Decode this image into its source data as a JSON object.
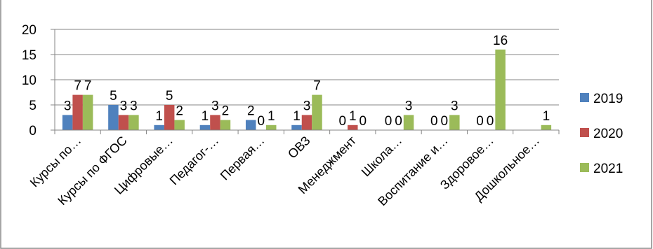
{
  "chart_data": {
    "type": "bar",
    "title": "",
    "xlabel": "",
    "ylabel": "",
    "ylim": [
      0,
      20
    ],
    "yticks": [
      0,
      5,
      10,
      15,
      20
    ],
    "grid": "horizontal",
    "legend_position": "right",
    "categories": [
      "Курсы по…",
      "Курсы по ФГОС",
      "Цифровые…",
      "Педагог-…",
      "Первая…",
      "ОВЗ",
      "Менеджмент",
      "Школа…",
      "Воспитание и…",
      "Здоровое…",
      "Дошкольное…"
    ],
    "series": [
      {
        "name": "2019",
        "color": "#4F81BD",
        "values": [
          3,
          5,
          1,
          1,
          2,
          1,
          0,
          0,
          0,
          0,
          null
        ]
      },
      {
        "name": "2020",
        "color": "#C0504D",
        "values": [
          7,
          3,
          5,
          3,
          0,
          3,
          1,
          0,
          0,
          0,
          null
        ]
      },
      {
        "name": "2021",
        "color": "#9BBB59",
        "values": [
          7,
          3,
          2,
          2,
          1,
          7,
          0,
          3,
          3,
          16,
          1
        ]
      }
    ]
  }
}
